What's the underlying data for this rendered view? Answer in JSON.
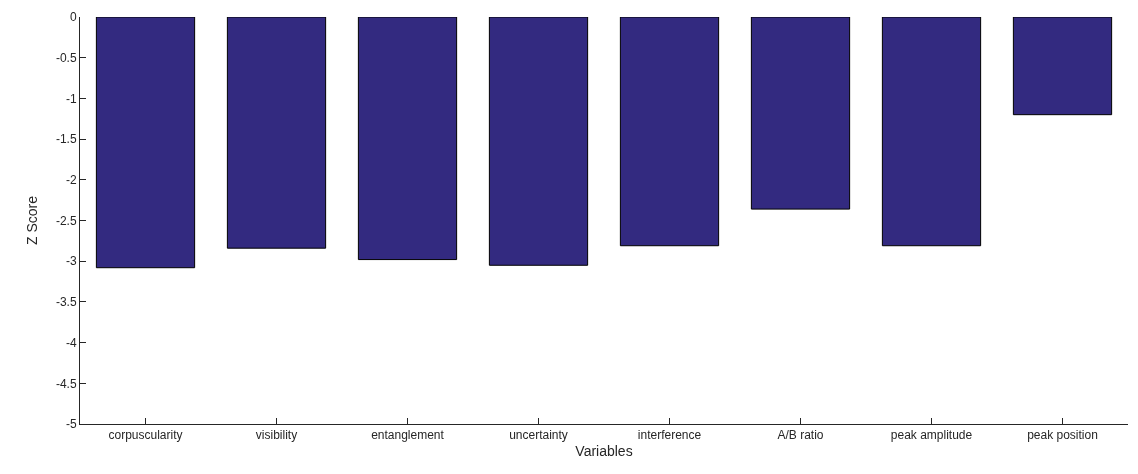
{
  "chart_data": {
    "type": "bar",
    "xlabel": "Variables",
    "ylabel": "Z Score",
    "categories": [
      "corpuscularity",
      "visibility",
      "entanglement",
      "uncertainty",
      "interference",
      "A/B ratio",
      "peak amplitude",
      "peak position"
    ],
    "values": [
      -3.08,
      -2.84,
      -2.98,
      -3.05,
      -2.81,
      -2.36,
      -2.81,
      -1.2
    ],
    "color": "#332a80",
    "ylim": [
      -5,
      0
    ],
    "yticks": [
      -5,
      -4.5,
      -4,
      -3.5,
      -3,
      -2.5,
      -2,
      -1.5,
      -1,
      -0.5,
      0
    ],
    "legend": false
  }
}
